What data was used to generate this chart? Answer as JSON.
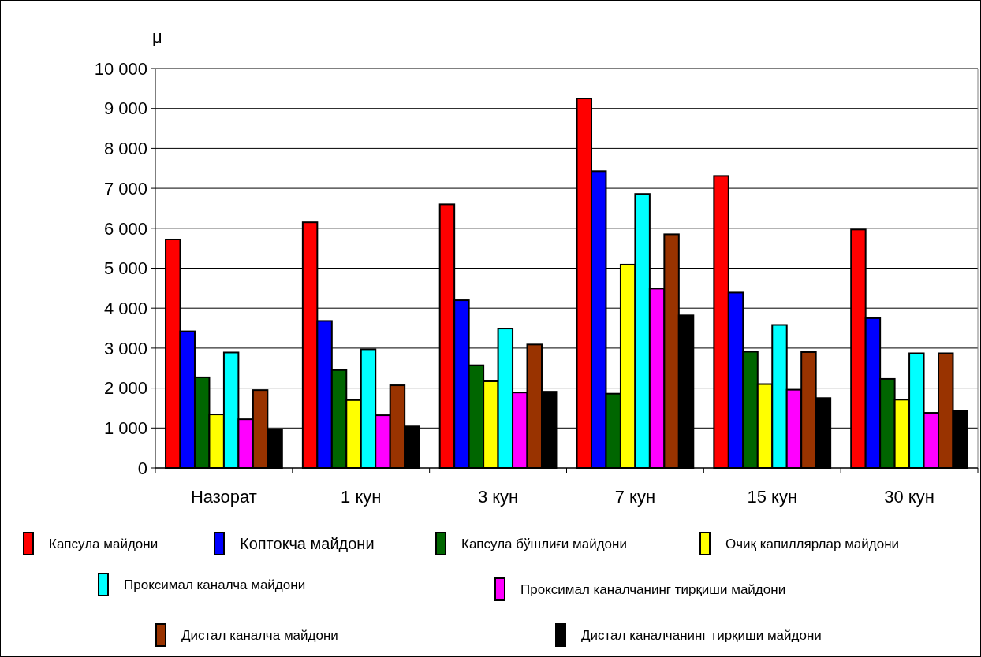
{
  "chart_data": {
    "type": "bar",
    "ylabel": "μ",
    "categories": [
      "Назорат",
      "1 кун",
      "3 кун",
      "7 кун",
      "15 кун",
      "30 кун"
    ],
    "series": [
      {
        "name": "Капсула майдони",
        "color": "#ff0000",
        "values": [
          5720,
          6150,
          6600,
          9250,
          7310,
          5970
        ]
      },
      {
        "name": "Коптокча майдони",
        "color": "#0000ff",
        "values": [
          3420,
          3680,
          4200,
          7430,
          4390,
          3750
        ]
      },
      {
        "name": "Капсула бўшлиғи майдони",
        "color": "#006600",
        "values": [
          2270,
          2450,
          2570,
          1860,
          2910,
          2230
        ]
      },
      {
        "name": "Очиқ капиллярлар майдони",
        "color": "#ffff00",
        "values": [
          1340,
          1700,
          2170,
          5090,
          2100,
          1710
        ]
      },
      {
        "name": "Проксимал каналча майдони",
        "color": "#00ffff",
        "values": [
          2890,
          2970,
          3490,
          6860,
          3580,
          2870
        ]
      },
      {
        "name": "Проксимал каналчанинг тирқиши майдони",
        "color": "#ff00ff",
        "values": [
          1220,
          1320,
          1890,
          4490,
          1960,
          1380
        ]
      },
      {
        "name": "Дистал каналча майдони",
        "color": "#993300",
        "values": [
          1950,
          2070,
          3090,
          5850,
          2900,
          2870
        ]
      },
      {
        "name": "Дистал каналчанинг тирқиши майдони",
        "color": "#000000",
        "values": [
          950,
          1040,
          1910,
          3820,
          1750,
          1430
        ]
      }
    ],
    "ylim": [
      0,
      10000
    ],
    "yticks": [
      0,
      {
        "value": 1000,
        "label": "1 000"
      },
      {
        "value": 2000,
        "label": "2 000"
      },
      {
        "value": 3000,
        "label": "3 000"
      },
      {
        "value": 4000,
        "label": "4 000"
      },
      {
        "value": 5000,
        "label": "5 000"
      },
      {
        "value": 6000,
        "label": "6 000"
      },
      {
        "value": 7000,
        "label": "7 000"
      },
      {
        "value": 8000,
        "label": "8 000"
      },
      {
        "value": 9000,
        "label": "9 000"
      },
      {
        "value": 10000,
        "label": "10 000"
      }
    ],
    "grid": "y",
    "legend": "bottom"
  }
}
